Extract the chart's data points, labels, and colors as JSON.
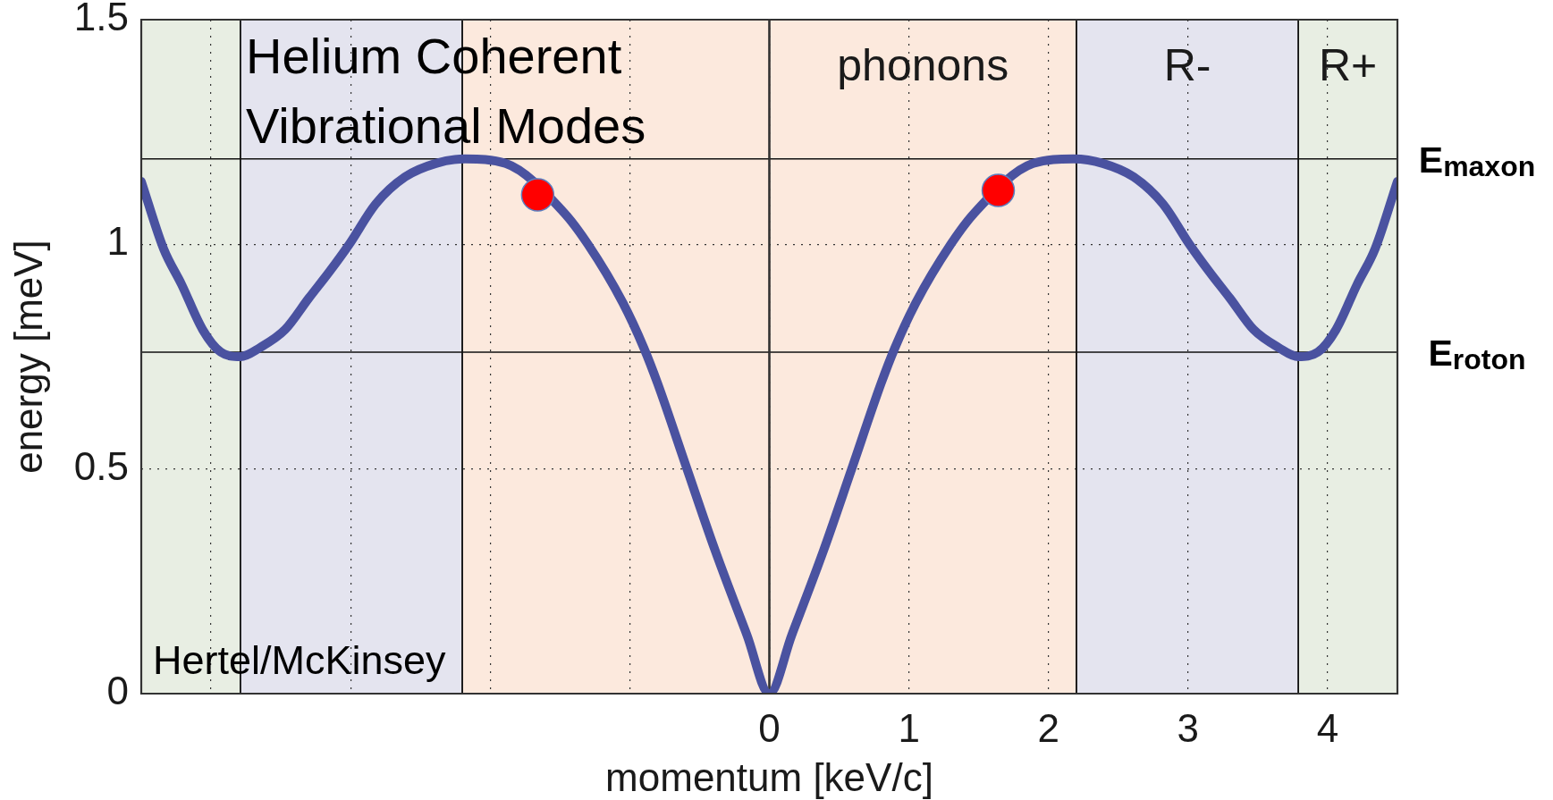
{
  "chart_data": {
    "type": "line",
    "xlabel": "momentum [keV/c]",
    "ylabel": "energy [meV]",
    "annotations": [
      "Helium Coherent Vibrational Modes",
      "Hertel/McKinsey"
    ],
    "xlim": [
      -4.5,
      4.5
    ],
    "xticks": [
      {
        "value": -4,
        "label": null
      },
      {
        "value": -3,
        "label": null
      },
      {
        "value": -2,
        "label": null
      },
      {
        "value": -1,
        "label": null
      },
      0,
      1,
      2,
      3,
      4
    ],
    "ylim": [
      0,
      1.5
    ],
    "yticks": [
      0,
      0.5,
      1,
      1.5
    ],
    "grid": true,
    "marker": "none",
    "bands": [
      {
        "axis": "x",
        "from": -4.5,
        "to": -3.79,
        "color": "#e8eee3"
      },
      {
        "axis": "x",
        "from": -3.79,
        "to": -2.2,
        "color": "#e4e4ef"
      },
      {
        "axis": "x",
        "from": -2.2,
        "to": 0,
        "color": "#fce9dd"
      },
      {
        "axis": "x",
        "from": 0,
        "to": 2.2,
        "color": "#fce9dd",
        "label": "phonons"
      },
      {
        "axis": "x",
        "from": 2.2,
        "to": 3.79,
        "color": "#e4e4ef",
        "label": "R-"
      },
      {
        "axis": "x",
        "from": 3.79,
        "to": 4.5,
        "color": "#e8eee3",
        "label": "R+"
      }
    ],
    "ref_lines": [
      {
        "axis": "y",
        "value": 1.19,
        "color": "#111111",
        "label": "E$_{maxon}$"
      },
      {
        "axis": "y",
        "value": 0.76,
        "color": "#111111",
        "label": "E$_{roton}$"
      },
      {
        "axis": "x",
        "value": 0,
        "color": "#333333"
      }
    ],
    "series": [
      {
        "color": "#4a52a0",
        "x": [
          -4.5,
          -4.34,
          -4.21,
          -4.06,
          -3.93,
          -3.79,
          -3.65,
          -3.47,
          -3.3,
          -3.15,
          -3.01,
          -2.82,
          -2.61,
          -2.39,
          -2.18,
          -1.89,
          -1.47,
          -1.3,
          -1.05,
          -0.9,
          -0.8,
          -0.59,
          -0.39,
          -0.16,
          0,
          0.16,
          0.39,
          0.59,
          0.8,
          0.9,
          1.05,
          1.3,
          1.47,
          1.89,
          2.18,
          2.39,
          2.61,
          2.82,
          3.01,
          3.15,
          3.3,
          3.47,
          3.65,
          3.79,
          3.93,
          4.06,
          4.21,
          4.34,
          4.5
        ],
        "values": [
          1.14,
          0.99,
          0.91,
          0.81,
          0.76,
          0.75,
          0.77,
          0.81,
          0.88,
          0.94,
          1.0,
          1.09,
          1.15,
          1.18,
          1.19,
          1.18,
          1.07,
          1.0,
          0.87,
          0.77,
          0.69,
          0.5,
          0.32,
          0.13,
          0,
          0.13,
          0.32,
          0.5,
          0.69,
          0.77,
          0.87,
          1.0,
          1.07,
          1.18,
          1.19,
          1.18,
          1.15,
          1.09,
          1.0,
          0.94,
          0.88,
          0.81,
          0.77,
          0.75,
          0.76,
          0.81,
          0.91,
          0.99,
          1.14
        ]
      },
      {
        "type": "scatter",
        "color": "#ff0000",
        "marker": "circle",
        "x": [
          -1.66,
          1.64
        ],
        "values": [
          1.11,
          1.12
        ]
      }
    ]
  }
}
